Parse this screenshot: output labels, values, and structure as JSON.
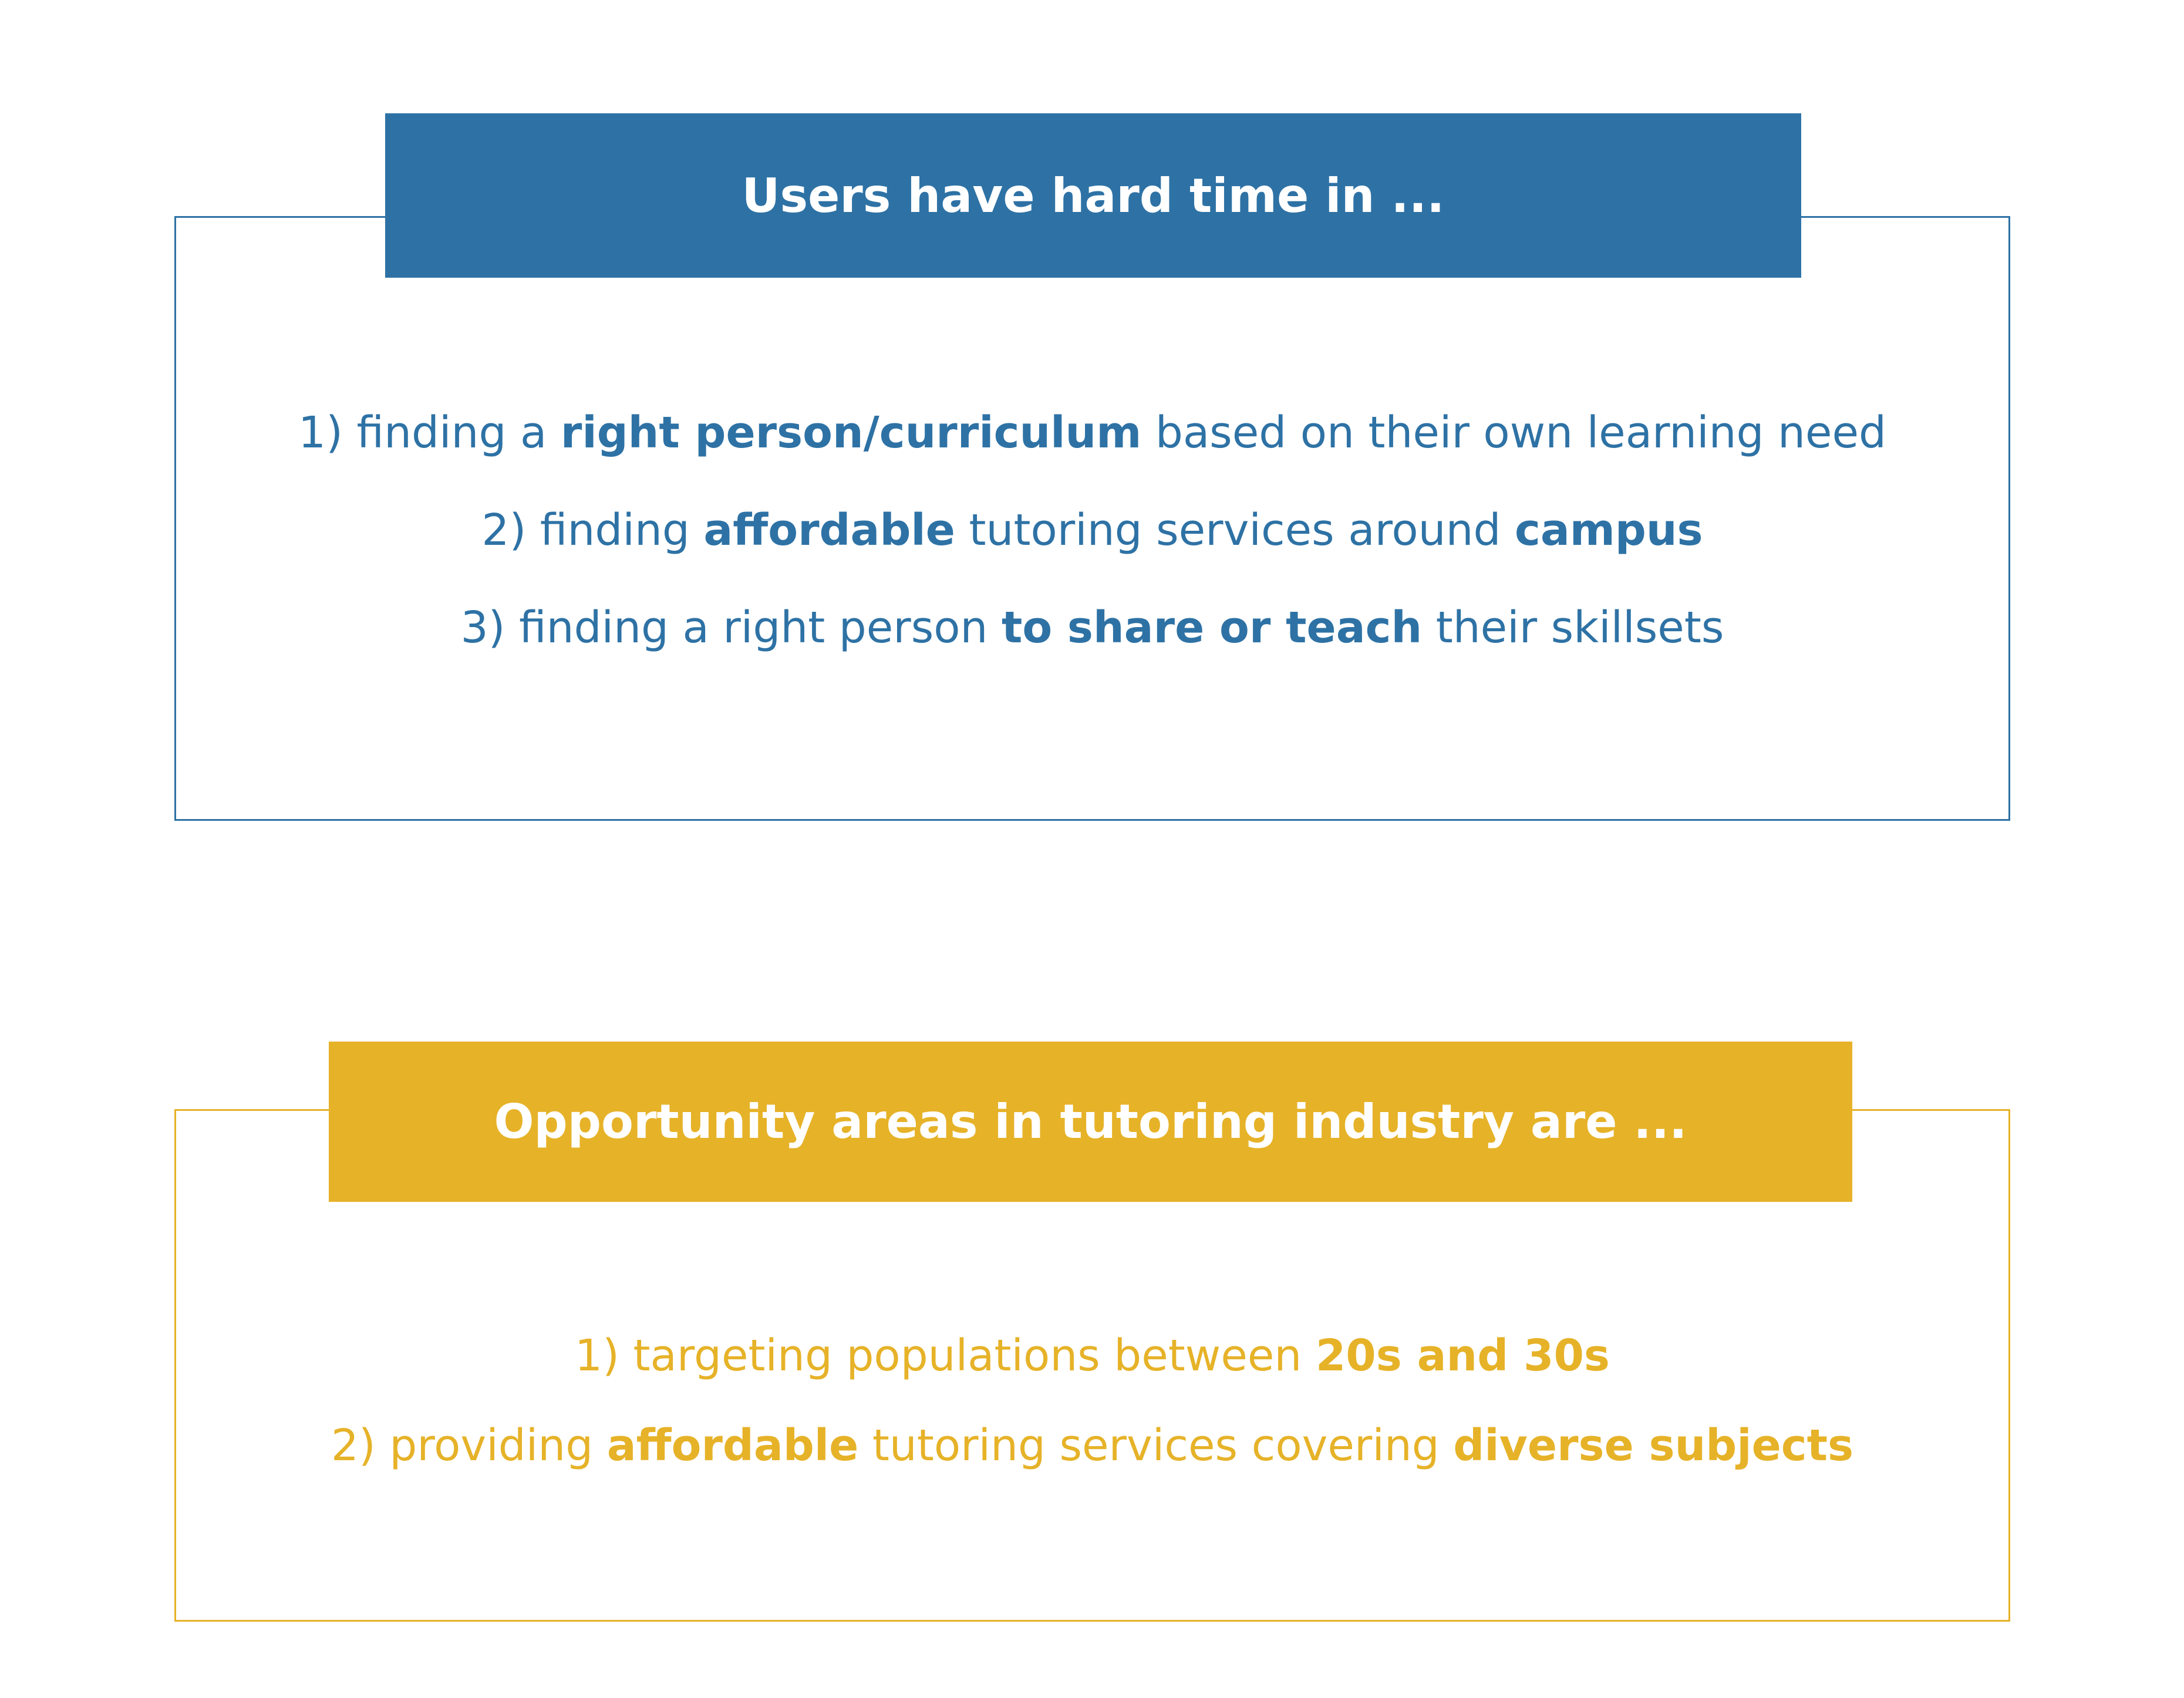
{
  "problems": {
    "title": "Users have hard time in ...",
    "accent_color": "#2e72a5",
    "items": [
      {
        "parts": [
          "1) finding a ",
          "right person/curriculum",
          " based on their own learning need"
        ]
      },
      {
        "parts": [
          "2) finding ",
          "affordable",
          " tutoring services around ",
          "campus"
        ]
      },
      {
        "parts": [
          "3) finding a right person ",
          "to share or teach",
          " their skillsets"
        ]
      }
    ]
  },
  "opportunities": {
    "title": "Opportunity areas in tutoring industry are ...",
    "accent_color": "#e6b228",
    "items": [
      {
        "parts": [
          "1) targeting populations between ",
          "20s and 30s"
        ]
      },
      {
        "parts": [
          "2) providing ",
          "affordable",
          " tutoring services covering ",
          "diverse subjects"
        ]
      }
    ]
  }
}
